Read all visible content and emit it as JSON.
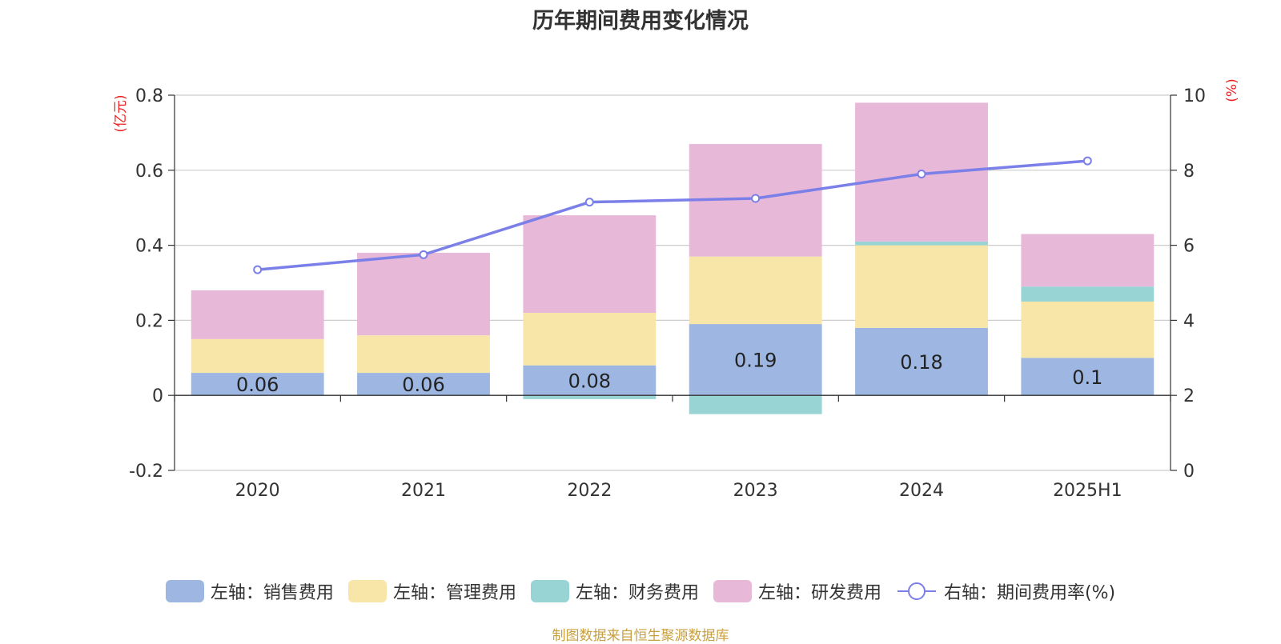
{
  "chart_data": {
    "type": "bar",
    "title": "历年期间费用变化情况",
    "categories": [
      "2020",
      "2021",
      "2022",
      "2023",
      "2024",
      "2025H1"
    ],
    "left_axis": {
      "unit_label": "(亿元)",
      "min": -0.2,
      "max": 0.8,
      "ticks": [
        "-0.2",
        "0",
        "0.2",
        "0.4",
        "0.6",
        "0.8"
      ]
    },
    "right_axis": {
      "unit_label": "(%)",
      "min": 0,
      "max": 10,
      "ticks": [
        "0",
        "2",
        "4",
        "6",
        "8",
        "10"
      ]
    },
    "series": [
      {
        "name": "左轴：销售费用",
        "color": "#9db7e2",
        "values": [
          0.06,
          0.06,
          0.08,
          0.19,
          0.18,
          0.1
        ],
        "labels": [
          "0.06",
          "0.06",
          "0.08",
          "0.19",
          "0.18",
          "0.1"
        ]
      },
      {
        "name": "左轴：管理费用",
        "color": "#f8e6a8",
        "values": [
          0.09,
          0.1,
          0.14,
          0.18,
          0.22,
          0.15
        ]
      },
      {
        "name": "左轴：财务费用",
        "color": "#98d4d4",
        "values": [
          0.0,
          0.0,
          -0.01,
          -0.05,
          0.01,
          0.04
        ]
      },
      {
        "name": "左轴：研发费用",
        "color": "#e8b8d8",
        "values": [
          0.13,
          0.22,
          0.26,
          0.3,
          0.37,
          0.14
        ]
      }
    ],
    "line_series": {
      "name": "右轴：期间费用率(%)",
      "color": "#7b7fe8",
      "values": [
        5.35,
        5.75,
        7.15,
        7.25,
        7.9,
        8.25
      ]
    },
    "grid": true,
    "legend_position": "bottom"
  },
  "source_note": "制图数据来自恒生聚源数据库"
}
